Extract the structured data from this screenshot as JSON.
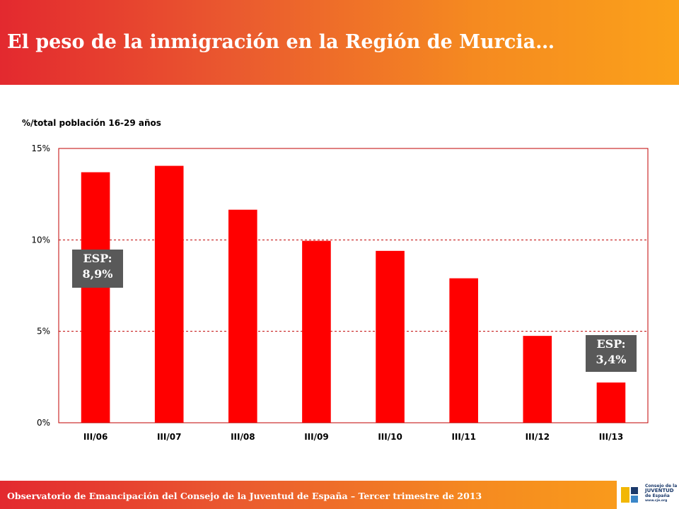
{
  "header": {
    "title": "El peso de la inmigración en la Región de Murcia…"
  },
  "footer": {
    "text": "Observatorio de Emancipación del Consejo de la Juventud de España – Tercer trimestre de 2013",
    "logo": {
      "line1": "Consejo de la",
      "line2": "JUVENTUD",
      "line3": "de España",
      "url": "www.cje.org",
      "accent_colors": [
        "#f2b705",
        "#1b3a6b",
        "#3a86c8"
      ]
    }
  },
  "chart_data": {
    "type": "bar",
    "title": "",
    "ylabel": "%/total población 16-29 años",
    "xlabel": "",
    "categories": [
      "III/06",
      "III/07",
      "III/08",
      "III/09",
      "III/10",
      "III/11",
      "III/12",
      "III/13"
    ],
    "values": [
      13.7,
      14.05,
      11.65,
      9.95,
      9.4,
      7.9,
      4.75,
      2.2
    ],
    "ylim": [
      0,
      15
    ],
    "yticks": [
      0,
      5,
      10,
      15
    ],
    "ytick_labels": [
      "0%",
      "5%",
      "10%",
      "15%"
    ],
    "bar_color": "#ff0000",
    "grid": "horizontal dashed",
    "grid_color": "#c00000",
    "frame_color": "#c00000",
    "annotations": [
      {
        "category": "III/06",
        "line1": "ESP:",
        "line2": "8,9%"
      },
      {
        "category": "III/13",
        "line1": "ESP:",
        "line2": "3,4%"
      }
    ]
  }
}
